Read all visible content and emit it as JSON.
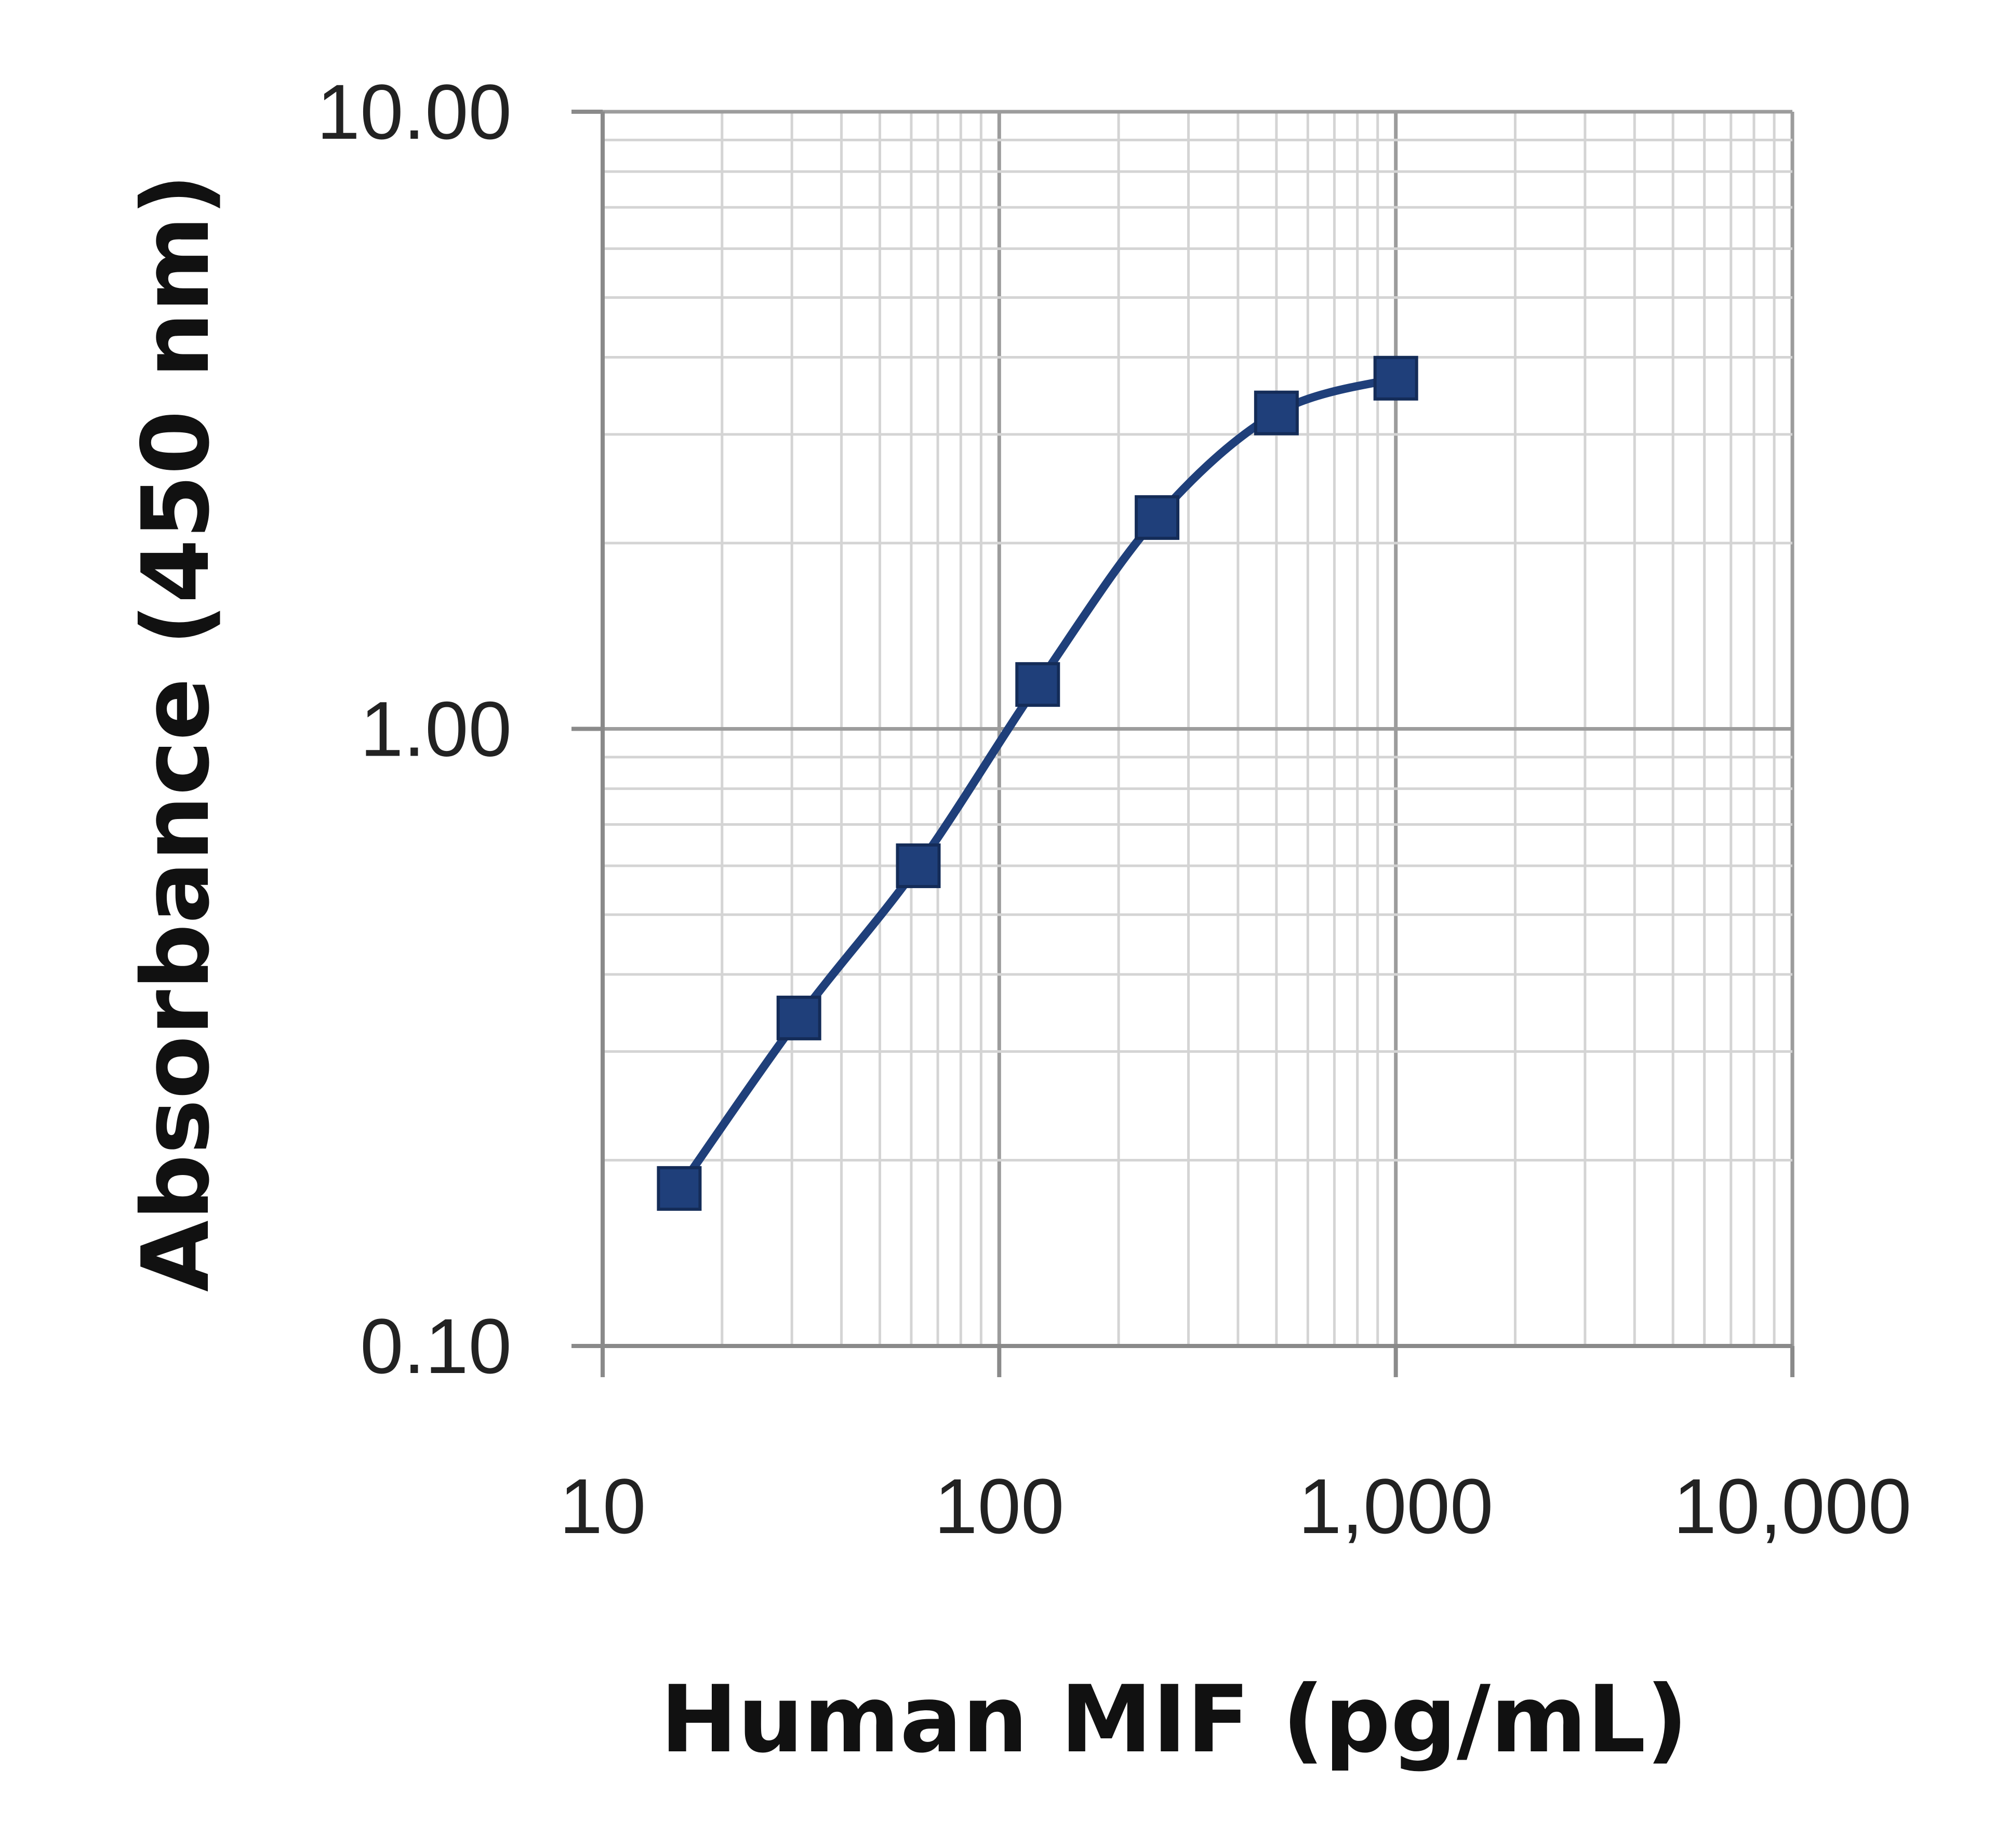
{
  "chart_data": {
    "type": "line",
    "title": "",
    "xlabel": "Human MIF (pg/mL)",
    "ylabel": "Absorbance (450 nm)",
    "x_scale": "log",
    "y_scale": "log",
    "xlim": [
      10,
      10000
    ],
    "ylim": [
      0.1,
      10
    ],
    "x_ticks": [
      10,
      100,
      1000,
      10000
    ],
    "x_tick_labels": [
      "10",
      "100",
      "1,000",
      "10,000"
    ],
    "y_ticks": [
      0.1,
      1,
      10
    ],
    "y_tick_labels": [
      "0.10",
      "1.00",
      "10.00"
    ],
    "grid": true,
    "legend": "none",
    "series": [
      {
        "marker": "square",
        "color": "#1f3f7a",
        "x": [
          15.6,
          31.25,
          62.5,
          125,
          250,
          500,
          1000
        ],
        "y": [
          0.18,
          0.34,
          0.6,
          1.18,
          2.2,
          3.25,
          3.7
        ]
      }
    ]
  }
}
